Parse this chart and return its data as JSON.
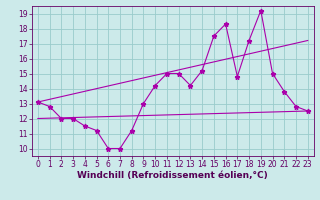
{
  "xlabel": "Windchill (Refroidissement éolien,°C)",
  "bg_color": "#cceaea",
  "grid_color": "#99cccc",
  "line_color": "#aa00aa",
  "xlim": [
    -0.5,
    23.5
  ],
  "ylim": [
    9.5,
    19.5
  ],
  "xticks": [
    0,
    1,
    2,
    3,
    4,
    5,
    6,
    7,
    8,
    9,
    10,
    11,
    12,
    13,
    14,
    15,
    16,
    17,
    18,
    19,
    20,
    21,
    22,
    23
  ],
  "yticks": [
    10,
    11,
    12,
    13,
    14,
    15,
    16,
    17,
    18,
    19
  ],
  "line1_x": [
    0,
    1,
    2,
    3,
    4,
    5,
    6,
    7,
    8,
    9,
    10,
    11,
    12,
    13,
    14,
    15,
    16,
    17,
    18,
    19,
    20,
    21,
    22,
    23
  ],
  "line1_y": [
    13.1,
    12.8,
    12.0,
    12.0,
    11.5,
    11.2,
    10.0,
    10.0,
    11.2,
    13.0,
    14.2,
    15.0,
    15.0,
    14.2,
    15.2,
    17.5,
    18.3,
    14.8,
    17.2,
    19.2,
    15.0,
    13.8,
    12.8,
    12.5
  ],
  "line2_x": [
    0,
    23
  ],
  "line2_y": [
    13.1,
    17.2
  ],
  "line3_x": [
    0,
    23
  ],
  "line3_y": [
    12.0,
    12.5
  ],
  "marker_size": 3.5,
  "font_size_label": 6.5,
  "font_size_tick": 5.5
}
